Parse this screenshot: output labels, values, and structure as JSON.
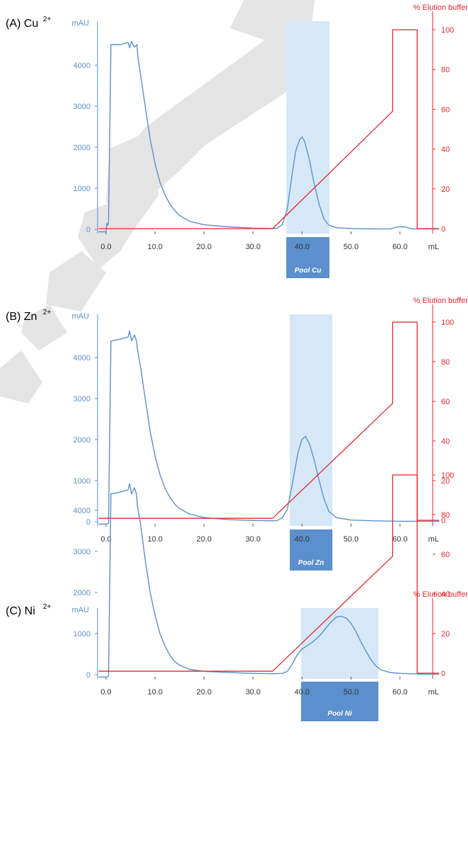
{
  "colors": {
    "absorbance": "#5b8fcd",
    "elution": "#e3262d",
    "pool_shade": "#d6e8f7",
    "pool_label_bg": "#5b8fcd",
    "watermark": "#e4e4e4"
  },
  "chart_data": [
    {
      "type": "line",
      "panel_label": "(A) Cu",
      "panel_sup": "2+",
      "y_left_unit": "mAU",
      "y_right_label": "% Elution buffer",
      "x_unit": "mL",
      "xlim": [
        -1.5,
        68
      ],
      "xticks": [
        "0.0",
        "10.0",
        "20.0",
        "30.0",
        "40.0",
        "50.0",
        "60.0"
      ],
      "ylim_left": [
        0,
        4800
      ],
      "yticks_left": [
        "0",
        "1000",
        "2000",
        "3000",
        "4000"
      ],
      "ylim_right": [
        0,
        105
      ],
      "yticks_right": [
        "0",
        "20",
        "40",
        "60",
        "80",
        "100"
      ],
      "pool": {
        "label": "Pool Cu",
        "from": 36.8,
        "to": 45.6
      },
      "series": [
        {
          "axis": "left",
          "x": [
            -1.5,
            0.0,
            0.2,
            0.3,
            0.5,
            1.0,
            3,
            4.5,
            4.8,
            5.2,
            5.8,
            6.3,
            6.5,
            7,
            8,
            9,
            10,
            11,
            12,
            13,
            14,
            15,
            17,
            20,
            25,
            30,
            34,
            35,
            36,
            37,
            38,
            38.7,
            39.5,
            40,
            40.5,
            41.5,
            42.5,
            43.5,
            44.5,
            45.5,
            47,
            50,
            55,
            58,
            59.5,
            61,
            62.5,
            63.5,
            68
          ],
          "y": [
            -60,
            -60,
            150,
            100,
            150,
            4500,
            4500,
            4550,
            4420,
            4580,
            4440,
            4500,
            4200,
            3800,
            3000,
            2200,
            1600,
            1150,
            850,
            620,
            460,
            340,
            200,
            110,
            60,
            30,
            20,
            30,
            120,
            500,
            1350,
            1900,
            2180,
            2250,
            2150,
            1700,
            1100,
            600,
            250,
            100,
            40,
            20,
            10,
            10,
            60,
            60,
            10,
            10,
            10
          ]
        },
        {
          "axis": "right",
          "x": [
            -1.5,
            34,
            58.5,
            58.5,
            63.5,
            63.5,
            68
          ],
          "y": [
            0,
            0,
            59,
            100,
            100,
            0,
            0
          ]
        }
      ]
    },
    {
      "type": "line",
      "panel_label": "(B) Zn",
      "panel_sup": "2+",
      "y_left_unit": "mAU",
      "y_right_label": "% Elution buffer",
      "x_unit": "mL",
      "xlim": [
        -1.5,
        68
      ],
      "xticks": [
        "0.0",
        "10.0",
        "20.0",
        "30.0",
        "40.0",
        "50.0",
        "60.0"
      ],
      "ylim_left": [
        0,
        4800
      ],
      "yticks_left": [
        "0",
        "1000",
        "2000",
        "3000",
        "4000"
      ],
      "ylim_right": [
        0,
        105
      ],
      "yticks_right": [
        "0",
        "20",
        "40",
        "60",
        "80",
        "100"
      ],
      "pool": {
        "label": "Pool Zn",
        "from": 37.5,
        "to": 46.2
      },
      "series": [
        {
          "axis": "left",
          "x": [
            -1.5,
            0.0,
            0.5,
            1.0,
            3,
            4.5,
            4.8,
            5.2,
            5.8,
            6.2,
            6.4,
            7,
            8,
            9,
            10,
            11,
            12,
            13,
            14,
            15,
            17,
            20,
            25,
            30,
            34,
            35,
            36,
            37,
            38,
            39.2,
            40,
            40.7,
            41.5,
            42.5,
            43.5,
            44.5,
            45.5,
            47,
            50,
            55,
            60,
            65,
            68
          ],
          "y": [
            -60,
            -60,
            -40,
            4400,
            4450,
            4500,
            4650,
            4400,
            4550,
            4400,
            4200,
            3800,
            3000,
            2200,
            1600,
            1150,
            820,
            600,
            430,
            320,
            190,
            100,
            50,
            30,
            20,
            30,
            100,
            300,
            900,
            1700,
            2000,
            2080,
            1900,
            1500,
            1000,
            550,
            250,
            100,
            40,
            20,
            10,
            10,
            10
          ]
        },
        {
          "axis": "right",
          "x": [
            -1.5,
            34,
            58.5,
            58.5,
            63.5,
            63.5,
            68
          ],
          "y": [
            1,
            1,
            59,
            100,
            100,
            0,
            0
          ]
        }
      ]
    },
    {
      "type": "line",
      "panel_label": "(C) Ni",
      "panel_sup": "2+",
      "y_left_unit": "mAU",
      "y_right_label": "% Elution buffer",
      "x_unit": "mL",
      "xlim": [
        -1.5,
        68
      ],
      "xticks": [
        "0.0",
        "10.0",
        "20.0",
        "30.0",
        "40.0",
        "50.0",
        "60.0"
      ],
      "ylim_left": [
        0,
        4800
      ],
      "yticks_left": [
        "0",
        "1000",
        "2000",
        "3000",
        "4000"
      ],
      "ylim_right": [
        0,
        105
      ],
      "yticks_right": [
        "0",
        "20",
        "40",
        "60",
        "80",
        "100"
      ],
      "pool": {
        "label": "Pool Ni",
        "from": 39.8,
        "to": 55.6
      },
      "series": [
        {
          "axis": "left",
          "x": [
            -1.5,
            0.0,
            0.5,
            1.0,
            3,
            4.5,
            4.8,
            5.2,
            5.8,
            6.2,
            6.4,
            7,
            8,
            9,
            10,
            11,
            12,
            13,
            14,
            15,
            17,
            20,
            25,
            30,
            34,
            36,
            37,
            38,
            39,
            40,
            41,
            42,
            43,
            44,
            45,
            46,
            47,
            48,
            49,
            50,
            51,
            52,
            53,
            54,
            55,
            56,
            58,
            60,
            65,
            68
          ],
          "y": [
            -60,
            -60,
            -40,
            4400,
            4450,
            4500,
            4650,
            4400,
            4550,
            4400,
            4100,
            3700,
            2800,
            2000,
            1450,
            1000,
            700,
            480,
            320,
            230,
            130,
            80,
            50,
            30,
            20,
            30,
            80,
            250,
            480,
            620,
            700,
            780,
            880,
            1000,
            1150,
            1290,
            1400,
            1420,
            1380,
            1250,
            1050,
            800,
            580,
            380,
            220,
            120,
            50,
            30,
            10,
            10
          ]
        },
        {
          "axis": "right",
          "x": [
            -1.5,
            34,
            58.5,
            58.5,
            63.5,
            63.5,
            68
          ],
          "y": [
            1,
            1,
            59,
            100,
            100,
            0,
            0
          ]
        }
      ]
    }
  ]
}
